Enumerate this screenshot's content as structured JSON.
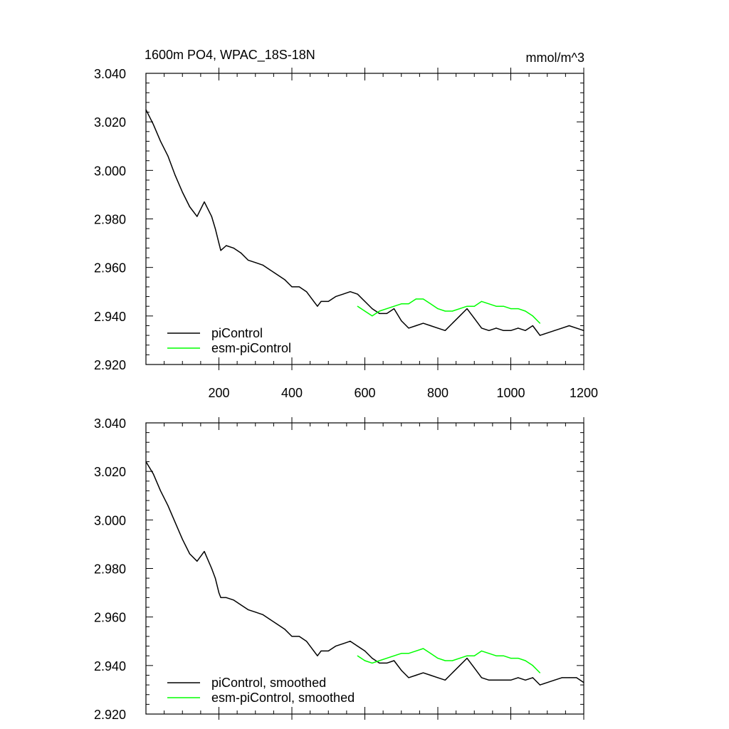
{
  "header": {
    "left_title": "1600m PO4, WPAC_18S-18N",
    "right_title": "mmol/m^3"
  },
  "chart_data": [
    {
      "type": "line",
      "xlim": [
        0,
        1200
      ],
      "ylim": [
        2.92,
        3.04
      ],
      "x_ticks": [
        200,
        400,
        600,
        800,
        1000,
        1200
      ],
      "x_tick_labels": [
        "200",
        "400",
        "600",
        "800",
        "1000",
        "1200"
      ],
      "y_ticks": [
        2.92,
        2.94,
        2.96,
        2.98,
        3.0,
        3.02,
        3.04
      ],
      "y_tick_labels": [
        "2.920",
        "2.940",
        "2.960",
        "2.980",
        "3.000",
        "3.020",
        "3.040"
      ],
      "legend_position": "bottom-left",
      "series": [
        {
          "name": "piControl",
          "color": "#000000",
          "points": [
            [
              0,
              3.025
            ],
            [
              20,
              3.019
            ],
            [
              40,
              3.012
            ],
            [
              60,
              3.006
            ],
            [
              80,
              2.998
            ],
            [
              100,
              2.991
            ],
            [
              120,
              2.985
            ],
            [
              140,
              2.981
            ],
            [
              160,
              2.987
            ],
            [
              180,
              2.981
            ],
            [
              190,
              2.976
            ],
            [
              200,
              2.97
            ],
            [
              205,
              2.967
            ],
            [
              220,
              2.969
            ],
            [
              240,
              2.968
            ],
            [
              260,
              2.966
            ],
            [
              280,
              2.963
            ],
            [
              300,
              2.962
            ],
            [
              320,
              2.961
            ],
            [
              340,
              2.959
            ],
            [
              360,
              2.957
            ],
            [
              380,
              2.955
            ],
            [
              400,
              2.952
            ],
            [
              420,
              2.952
            ],
            [
              440,
              2.95
            ],
            [
              460,
              2.946
            ],
            [
              470,
              2.944
            ],
            [
              480,
              2.946
            ],
            [
              500,
              2.946
            ],
            [
              520,
              2.948
            ],
            [
              540,
              2.949
            ],
            [
              560,
              2.95
            ],
            [
              580,
              2.949
            ],
            [
              600,
              2.946
            ],
            [
              620,
              2.943
            ],
            [
              640,
              2.941
            ],
            [
              660,
              2.941
            ],
            [
              680,
              2.943
            ],
            [
              700,
              2.938
            ],
            [
              720,
              2.935
            ],
            [
              740,
              2.936
            ],
            [
              760,
              2.937
            ],
            [
              780,
              2.936
            ],
            [
              800,
              2.935
            ],
            [
              820,
              2.934
            ],
            [
              840,
              2.937
            ],
            [
              860,
              2.94
            ],
            [
              880,
              2.943
            ],
            [
              900,
              2.939
            ],
            [
              920,
              2.935
            ],
            [
              940,
              2.934
            ],
            [
              960,
              2.935
            ],
            [
              980,
              2.934
            ],
            [
              1000,
              2.934
            ],
            [
              1020,
              2.935
            ],
            [
              1040,
              2.934
            ],
            [
              1060,
              2.936
            ],
            [
              1080,
              2.932
            ],
            [
              1100,
              2.933
            ],
            [
              1120,
              2.934
            ],
            [
              1140,
              2.935
            ],
            [
              1160,
              2.936
            ],
            [
              1180,
              2.935
            ],
            [
              1200,
              2.934
            ]
          ]
        },
        {
          "name": "esm-piControl",
          "color": "#00ff00",
          "points": [
            [
              580,
              2.944
            ],
            [
              600,
              2.942
            ],
            [
              620,
              2.94
            ],
            [
              640,
              2.942
            ],
            [
              660,
              2.943
            ],
            [
              680,
              2.944
            ],
            [
              700,
              2.945
            ],
            [
              720,
              2.945
            ],
            [
              740,
              2.947
            ],
            [
              760,
              2.947
            ],
            [
              780,
              2.945
            ],
            [
              800,
              2.943
            ],
            [
              820,
              2.942
            ],
            [
              840,
              2.942
            ],
            [
              860,
              2.943
            ],
            [
              880,
              2.944
            ],
            [
              900,
              2.944
            ],
            [
              920,
              2.946
            ],
            [
              940,
              2.945
            ],
            [
              960,
              2.944
            ],
            [
              980,
              2.944
            ],
            [
              1000,
              2.943
            ],
            [
              1020,
              2.943
            ],
            [
              1040,
              2.942
            ],
            [
              1060,
              2.94
            ],
            [
              1080,
              2.937
            ]
          ]
        }
      ]
    },
    {
      "type": "line",
      "xlim": [
        0,
        1200
      ],
      "ylim": [
        2.92,
        3.04
      ],
      "x_ticks": [
        200,
        400,
        600,
        800,
        1000,
        1200
      ],
      "y_ticks": [
        2.92,
        2.94,
        2.96,
        2.98,
        3.0,
        3.02,
        3.04
      ],
      "y_tick_labels": [
        "2.920",
        "2.940",
        "2.960",
        "2.980",
        "3.000",
        "3.020",
        "3.040"
      ],
      "legend_position": "bottom-left",
      "series": [
        {
          "name": "piControl, smoothed",
          "color": "#000000",
          "points": [
            [
              0,
              3.024
            ],
            [
              20,
              3.019
            ],
            [
              40,
              3.012
            ],
            [
              60,
              3.006
            ],
            [
              80,
              2.999
            ],
            [
              100,
              2.992
            ],
            [
              120,
              2.986
            ],
            [
              140,
              2.983
            ],
            [
              160,
              2.987
            ],
            [
              180,
              2.98
            ],
            [
              190,
              2.976
            ],
            [
              200,
              2.97
            ],
            [
              205,
              2.968
            ],
            [
              220,
              2.968
            ],
            [
              240,
              2.967
            ],
            [
              260,
              2.965
            ],
            [
              280,
              2.963
            ],
            [
              300,
              2.962
            ],
            [
              320,
              2.961
            ],
            [
              340,
              2.959
            ],
            [
              360,
              2.957
            ],
            [
              380,
              2.955
            ],
            [
              400,
              2.952
            ],
            [
              420,
              2.952
            ],
            [
              440,
              2.95
            ],
            [
              460,
              2.946
            ],
            [
              470,
              2.944
            ],
            [
              480,
              2.946
            ],
            [
              500,
              2.946
            ],
            [
              520,
              2.948
            ],
            [
              540,
              2.949
            ],
            [
              560,
              2.95
            ],
            [
              580,
              2.948
            ],
            [
              600,
              2.946
            ],
            [
              620,
              2.943
            ],
            [
              640,
              2.941
            ],
            [
              660,
              2.941
            ],
            [
              680,
              2.942
            ],
            [
              700,
              2.938
            ],
            [
              720,
              2.935
            ],
            [
              740,
              2.936
            ],
            [
              760,
              2.937
            ],
            [
              780,
              2.936
            ],
            [
              800,
              2.935
            ],
            [
              820,
              2.934
            ],
            [
              840,
              2.937
            ],
            [
              860,
              2.94
            ],
            [
              880,
              2.943
            ],
            [
              900,
              2.939
            ],
            [
              920,
              2.935
            ],
            [
              940,
              2.934
            ],
            [
              960,
              2.934
            ],
            [
              980,
              2.934
            ],
            [
              1000,
              2.934
            ],
            [
              1020,
              2.935
            ],
            [
              1040,
              2.934
            ],
            [
              1060,
              2.935
            ],
            [
              1080,
              2.932
            ],
            [
              1100,
              2.933
            ],
            [
              1120,
              2.934
            ],
            [
              1140,
              2.935
            ],
            [
              1160,
              2.935
            ],
            [
              1180,
              2.935
            ],
            [
              1200,
              2.933
            ]
          ]
        },
        {
          "name": "esm-piControl, smoothed",
          "color": "#00ff00",
          "points": [
            [
              580,
              2.944
            ],
            [
              600,
              2.942
            ],
            [
              620,
              2.941
            ],
            [
              640,
              2.942
            ],
            [
              660,
              2.943
            ],
            [
              680,
              2.944
            ],
            [
              700,
              2.945
            ],
            [
              720,
              2.945
            ],
            [
              740,
              2.946
            ],
            [
              760,
              2.947
            ],
            [
              780,
              2.945
            ],
            [
              800,
              2.943
            ],
            [
              820,
              2.942
            ],
            [
              840,
              2.942
            ],
            [
              860,
              2.943
            ],
            [
              880,
              2.944
            ],
            [
              900,
              2.944
            ],
            [
              920,
              2.946
            ],
            [
              940,
              2.945
            ],
            [
              960,
              2.944
            ],
            [
              980,
              2.944
            ],
            [
              1000,
              2.943
            ],
            [
              1020,
              2.943
            ],
            [
              1040,
              2.942
            ],
            [
              1060,
              2.94
            ],
            [
              1080,
              2.937
            ]
          ]
        }
      ]
    }
  ]
}
